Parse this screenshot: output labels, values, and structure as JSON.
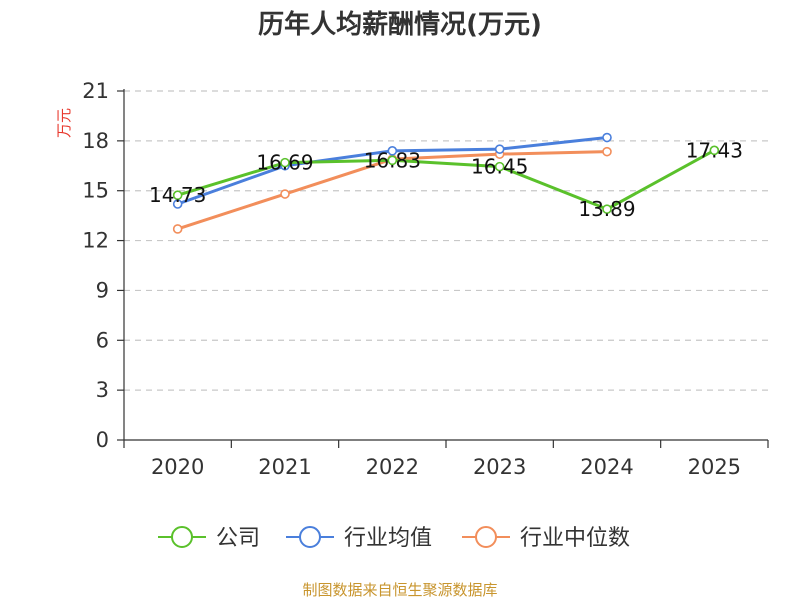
{
  "chart_data": {
    "type": "line",
    "title": "历年人均薪酬情况(万元)",
    "ylabel": "万元",
    "xlabel": "",
    "categories": [
      "2020",
      "2021",
      "2022",
      "2023",
      "2024",
      "2025"
    ],
    "ylim": [
      0,
      21
    ],
    "yticks": [
      "0",
      "3",
      "6",
      "9",
      "12",
      "15",
      "18",
      "21"
    ],
    "grid": true,
    "legend_position": "bottom",
    "series": [
      {
        "name": "公司",
        "color": "#5ac12b",
        "values": [
          14.73,
          16.69,
          16.83,
          16.45,
          13.89,
          17.43
        ],
        "labels": [
          "14.73",
          "16.69",
          "16.83",
          "16.45",
          "13.89",
          "17.43"
        ]
      },
      {
        "name": "行业均值",
        "color": "#4a7fdc",
        "values": [
          14.2,
          16.5,
          17.4,
          17.5,
          18.2,
          null
        ]
      },
      {
        "name": "行业中位数",
        "color": "#f28e5b",
        "values": [
          12.7,
          14.8,
          16.9,
          17.2,
          17.35,
          null
        ]
      }
    ],
    "source": "制图数据来自恒生聚源数据库"
  }
}
